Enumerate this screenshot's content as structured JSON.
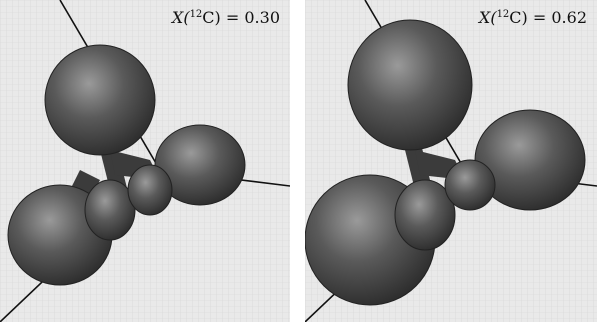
{
  "panels": [
    {
      "prefix": "X(",
      "isotope_mass": "12",
      "isotope_symbol": "C",
      "suffix": ") = ",
      "value": "0.30"
    },
    {
      "prefix": "X(",
      "isotope_mass": "12",
      "isotope_symbol": "C",
      "suffix": ") = ",
      "value": "0.62"
    }
  ],
  "colors": {
    "background": "#e9e9e9",
    "grid": "#cfcfcf",
    "axis": "#111111",
    "blob": "#4a4a4a",
    "blob_highlight": "#8a8a8a"
  }
}
